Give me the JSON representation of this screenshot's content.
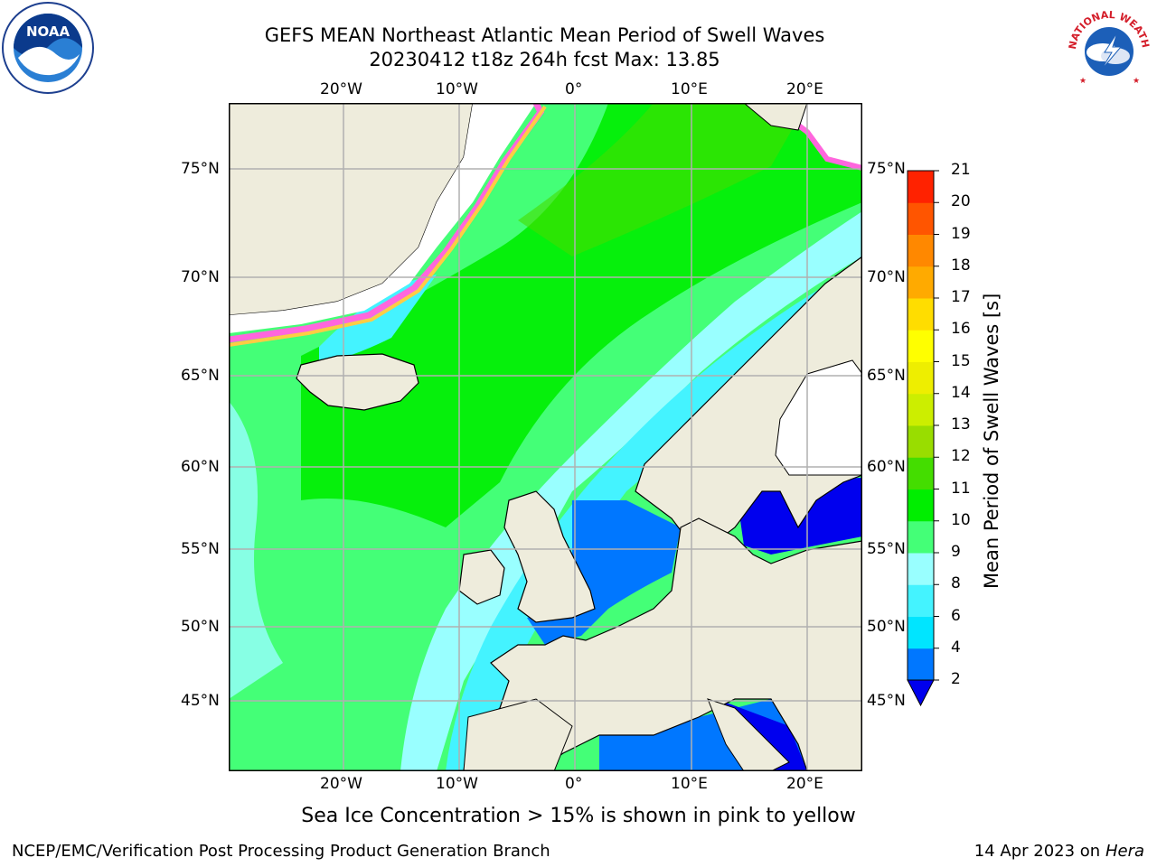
{
  "title": {
    "line1": "GEFS MEAN Northeast Atlantic Mean Period of Swell Waves",
    "line2": "20230412 t18z 264h fcst   Max: 13.85"
  },
  "map": {
    "lon_labels": [
      "20°W",
      "10°W",
      "0°",
      "10°E",
      "20°E"
    ],
    "lat_labels": [
      "75°N",
      "70°N",
      "65°N",
      "60°N",
      "55°N",
      "50°N",
      "45°N"
    ],
    "land_color": "#eeecdc",
    "ice_color": "#ffffff"
  },
  "colorbar": {
    "title": "Mean Period of Swell Waves [s]",
    "ticks": [
      "2",
      "4",
      "6",
      "8",
      "9",
      "10",
      "11",
      "12",
      "13",
      "14",
      "15",
      "16",
      "17",
      "18",
      "19",
      "20",
      "21"
    ],
    "colors": [
      "#0077ff",
      "#00e5ff",
      "#44f3ff",
      "#99ffff",
      "#44ff77",
      "#00ee00",
      "#44dd00",
      "#99dd00",
      "#ccee00",
      "#eeee00",
      "#ffff00",
      "#ffdd00",
      "#ffaa00",
      "#ff8800",
      "#ff5500",
      "#ff2200"
    ],
    "under_color": "#0000ee"
  },
  "note": "Sea Ice Concentration > 15% is shown in pink to yellow",
  "footer": {
    "left": "NCEP/EMC/Verification Post Processing Product Generation Branch",
    "date": "14 Apr 2023 on ",
    "machine": "Hera"
  },
  "logos": {
    "noaa": "NOAA",
    "nws": "NATIONAL WEATHER SERVICE"
  }
}
